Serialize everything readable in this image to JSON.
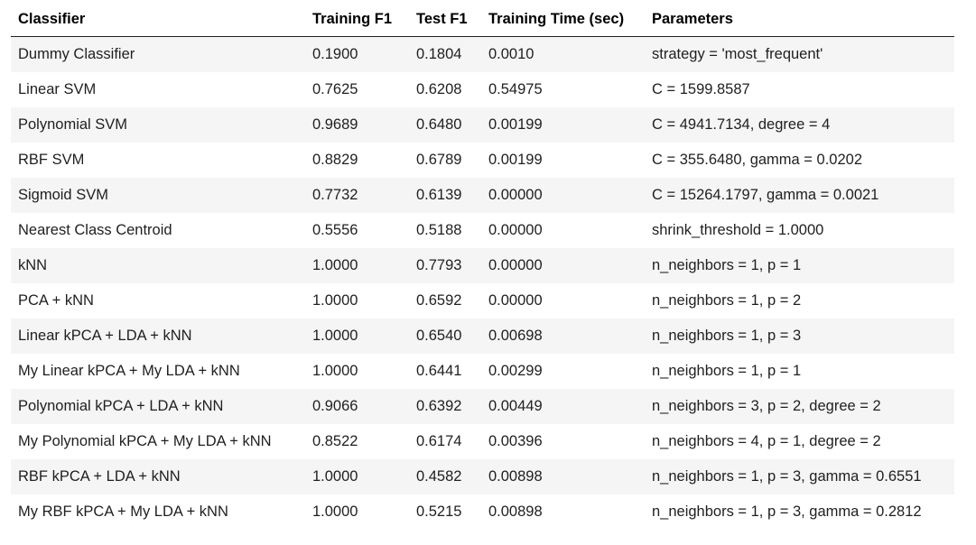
{
  "table": {
    "headers": [
      "Classifier",
      "Training F1",
      "Test F1",
      "Training Time (sec)",
      "Parameters"
    ],
    "rows": [
      [
        "Dummy Classifier",
        "0.1900",
        "0.1804",
        "0.0010",
        "strategy = 'most_frequent'"
      ],
      [
        "Linear SVM",
        "0.7625",
        "0.6208",
        "0.54975",
        "C = 1599.8587"
      ],
      [
        "Polynomial SVM",
        "0.9689",
        "0.6480",
        "0.00199",
        "C = 4941.7134, degree = 4"
      ],
      [
        "RBF SVM",
        "0.8829",
        "0.6789",
        "0.00199",
        "C = 355.6480, gamma = 0.0202"
      ],
      [
        "Sigmoid SVM",
        "0.7732",
        "0.6139",
        "0.00000",
        "C = 15264.1797, gamma = 0.0021"
      ],
      [
        "Nearest Class Centroid",
        "0.5556",
        "0.5188",
        "0.00000",
        "shrink_threshold = 1.0000"
      ],
      [
        "kNN",
        "1.0000",
        "0.7793",
        "0.00000",
        "n_neighbors = 1, p = 1"
      ],
      [
        "PCA + kNN",
        "1.0000",
        "0.6592",
        "0.00000",
        "n_neighbors = 1, p = 2"
      ],
      [
        "Linear kPCA + LDA + kNN",
        "1.0000",
        "0.6540",
        "0.00698",
        "n_neighbors = 1, p = 3"
      ],
      [
        "My Linear kPCA + My LDA + kNN",
        "1.0000",
        "0.6441",
        "0.00299",
        "n_neighbors = 1, p = 1"
      ],
      [
        "Polynomial kPCA + LDA + kNN",
        "0.9066",
        "0.6392",
        "0.00449",
        "n_neighbors = 3, p = 2, degree = 2"
      ],
      [
        "My Polynomial kPCA + My LDA + kNN",
        "0.8522",
        "0.6174",
        "0.00396",
        "n_neighbors = 4, p = 1, degree = 2"
      ],
      [
        "RBF kPCA + LDA + kNN",
        "1.0000",
        "0.4582",
        "0.00898",
        "n_neighbors = 1, p = 3, gamma = 0.6551"
      ],
      [
        "My RBF kPCA + My LDA + kNN",
        "1.0000",
        "0.5215",
        "0.00898",
        "n_neighbors = 1, p = 3, gamma = 0.2812"
      ]
    ]
  }
}
